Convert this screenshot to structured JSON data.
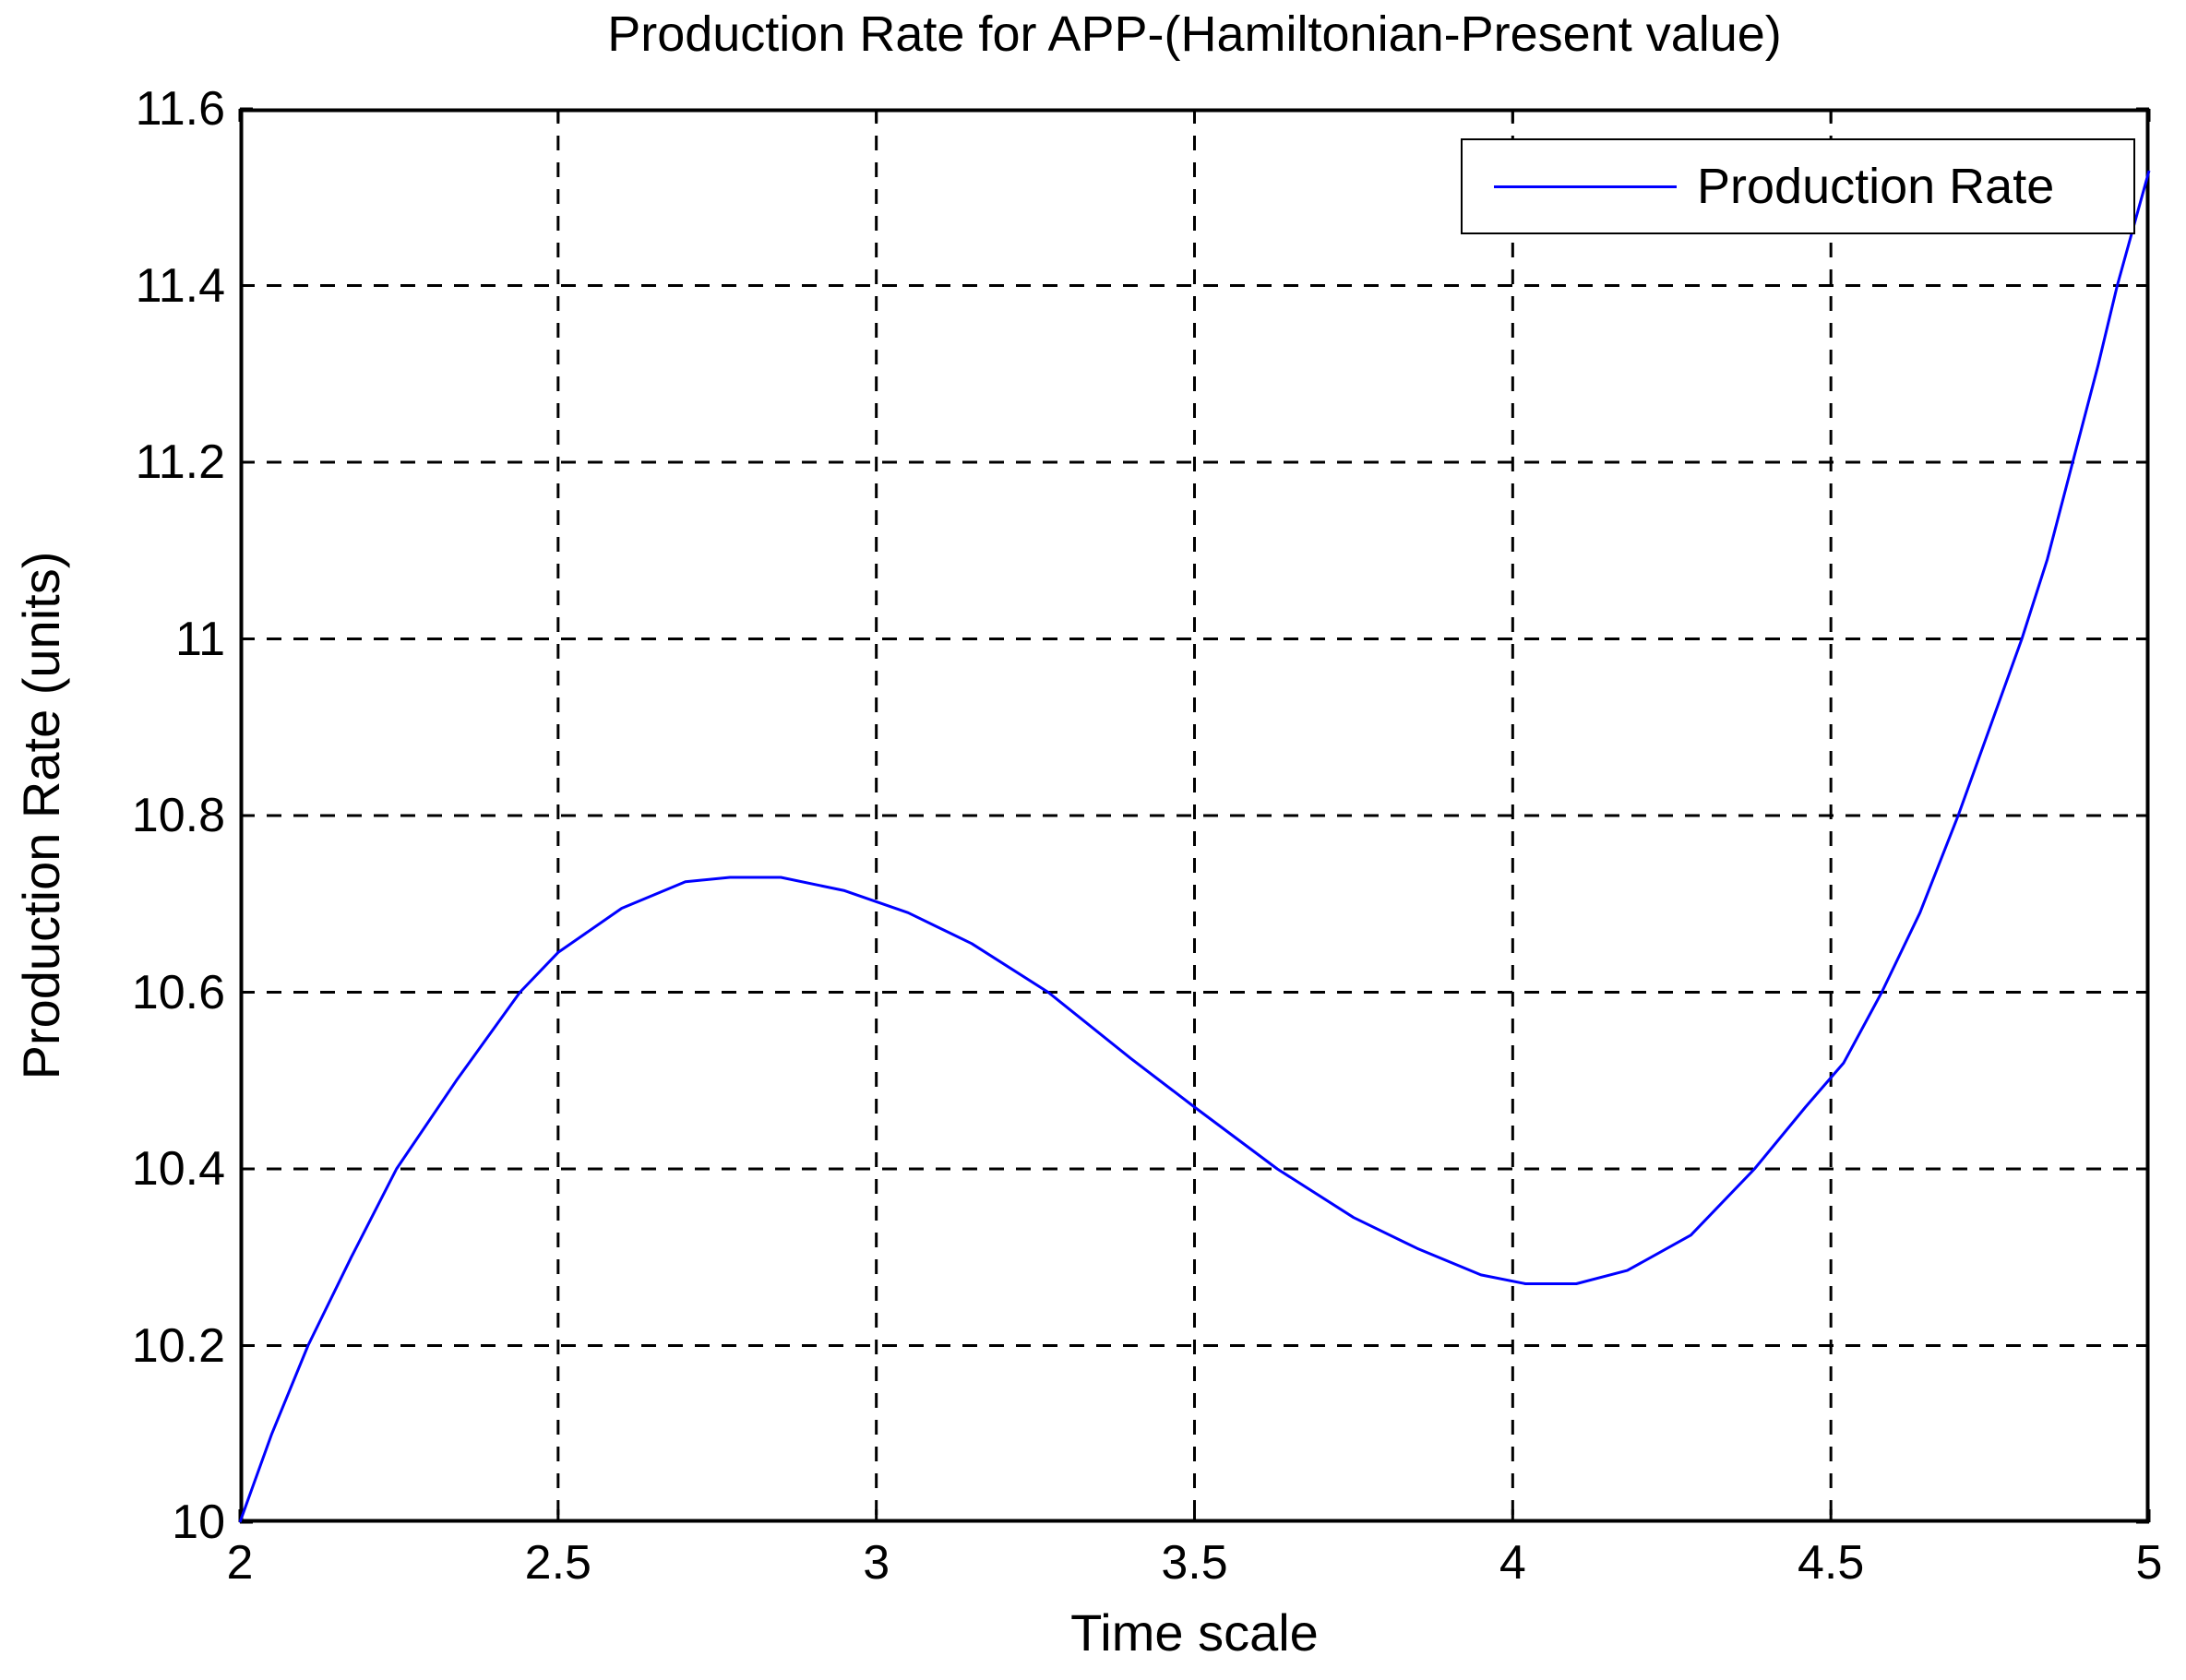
{
  "chart_data": {
    "type": "line",
    "title": "Production Rate for APP-(Hamiltonian-Present value)",
    "xlabel": "Time scale",
    "ylabel": "Production Rate (units)",
    "xlim": [
      2,
      5
    ],
    "ylim": [
      10,
      11.6
    ],
    "x_ticks": [
      2,
      2.5,
      3,
      3.5,
      4,
      4.5,
      5
    ],
    "x_tick_labels": [
      "2",
      "2.5",
      "3",
      "3.5",
      "4",
      "4.5",
      "5"
    ],
    "y_ticks": [
      10,
      10.2,
      10.4,
      10.6,
      10.8,
      11,
      11.2,
      11.4,
      11.6
    ],
    "y_tick_labels": [
      "10",
      "10.2",
      "10.4",
      "10.6",
      "10.8",
      "11",
      "11.2",
      "11.4",
      "11.6"
    ],
    "grid": "dashed",
    "legend": {
      "position": "top-right",
      "entries": [
        {
          "label": "Production Rate",
          "color": "#0000FF"
        }
      ]
    },
    "series": [
      {
        "name": "Production Rate",
        "color": "#0000FF",
        "points": [
          [
            2.0,
            10.0
          ],
          [
            2.05,
            10.1
          ],
          [
            2.107,
            10.2
          ],
          [
            2.175,
            10.3
          ],
          [
            2.246,
            10.4
          ],
          [
            2.34,
            10.5
          ],
          [
            2.44,
            10.6
          ],
          [
            2.5,
            10.645
          ],
          [
            2.6,
            10.695
          ],
          [
            2.7,
            10.725
          ],
          [
            2.77,
            10.73
          ],
          [
            2.85,
            10.73
          ],
          [
            2.95,
            10.715
          ],
          [
            3.05,
            10.69
          ],
          [
            3.15,
            10.655
          ],
          [
            3.27,
            10.6
          ],
          [
            3.4,
            10.525
          ],
          [
            3.5,
            10.47
          ],
          [
            3.63,
            10.4
          ],
          [
            3.75,
            10.345
          ],
          [
            3.85,
            10.31
          ],
          [
            3.95,
            10.28
          ],
          [
            4.02,
            10.27
          ],
          [
            4.1,
            10.27
          ],
          [
            4.18,
            10.285
          ],
          [
            4.28,
            10.325
          ],
          [
            4.38,
            10.4
          ],
          [
            4.46,
            10.47
          ],
          [
            4.52,
            10.52
          ],
          [
            4.58,
            10.6
          ],
          [
            4.64,
            10.69
          ],
          [
            4.7,
            10.8
          ],
          [
            4.75,
            10.9
          ],
          [
            4.8,
            11.0
          ],
          [
            4.84,
            11.09
          ],
          [
            4.88,
            11.2
          ],
          [
            4.92,
            11.31
          ],
          [
            4.95,
            11.4
          ],
          [
            5.0,
            11.53
          ]
        ]
      }
    ]
  },
  "colors": {
    "background": "#FFFFFF",
    "axis": "#000000",
    "grid": "#000000",
    "text": "#000000",
    "line": "#0000FF"
  }
}
